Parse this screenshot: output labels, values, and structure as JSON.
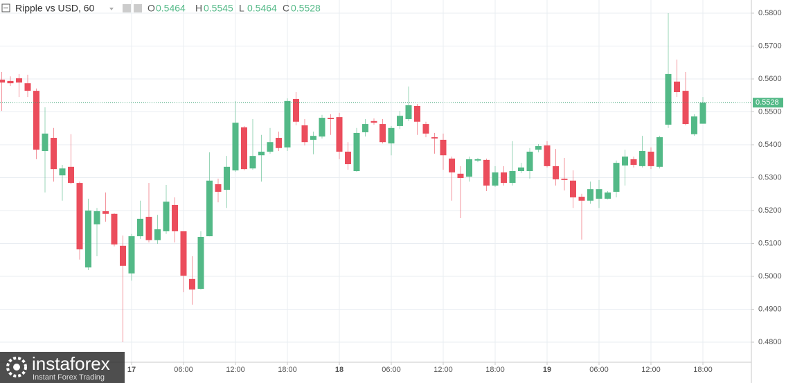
{
  "chart_data": {
    "type": "candlestick",
    "title": "Ripple vs USD, 60",
    "header_labels": [
      "O",
      "H",
      "L",
      "C"
    ],
    "categories": [
      null,
      null,
      null,
      null,
      null,
      null,
      null,
      null,
      null,
      null,
      null,
      null,
      null,
      null,
      null,
      "17",
      null,
      null,
      null,
      null,
      null,
      "06:00",
      null,
      null,
      null,
      null,
      null,
      "12:00",
      null,
      null,
      null,
      null,
      null,
      "18:00",
      null,
      null,
      null,
      null,
      null,
      "18",
      null,
      null,
      null,
      null,
      null,
      "06:00",
      null,
      null,
      null,
      null,
      null,
      "12:00",
      null,
      null,
      null,
      null,
      null,
      "18:00",
      null,
      null,
      null,
      null,
      null,
      "19",
      null,
      null,
      null,
      null,
      null,
      "06:00",
      null,
      null,
      null,
      null,
      null,
      "12:00",
      null,
      null,
      null,
      null,
      null,
      "18:00"
    ],
    "open": [
      0.5598,
      0.5594,
      0.5602,
      0.5587,
      0.5564,
      0.5381,
      0.5421,
      0.5307,
      0.5333,
      0.5284,
      0.5027,
      0.5158,
      0.5198,
      0.519,
      0.5093,
      0.5009,
      0.5122,
      0.5181,
      0.511,
      0.5137,
      0.5217,
      0.5137,
      0.4992,
      0.4962,
      0.5122,
      0.528,
      0.5263,
      0.5322,
      0.5453,
      0.5328,
      0.5368,
      0.5379,
      0.5421,
      0.5392,
      0.5539,
      0.5459,
      0.5415,
      0.5425,
      0.5482,
      0.5484,
      0.5379,
      0.532,
      0.5438,
      0.5472,
      0.5463,
      0.5404,
      0.5457,
      0.5478,
      0.5518,
      0.5463,
      0.5423,
      0.5415,
      0.5358,
      0.5312,
      0.5303,
      0.5352,
      0.5354,
      0.5276,
      0.5316,
      0.5284,
      0.532,
      0.532,
      0.5385,
      0.5398,
      0.5335,
      0.5297,
      0.5291,
      0.5242,
      0.523,
      0.5236,
      0.5236,
      0.5257,
      0.5337,
      0.5356,
      0.5335,
      0.5379,
      0.5333,
      0.5461,
      0.5592,
      0.5564,
      0.5432,
      0.5464
    ],
    "high": [
      0.5621,
      0.5608,
      0.5615,
      0.5613,
      0.5571,
      0.5514,
      0.5451,
      0.5339,
      0.5432,
      0.5288,
      0.5236,
      0.5208,
      0.5255,
      0.5192,
      0.5124,
      0.5129,
      0.523,
      0.5284,
      0.5187,
      0.5278,
      0.524,
      0.5137,
      0.5061,
      0.5137,
      0.5377,
      0.5297,
      0.5366,
      0.5533,
      0.5457,
      0.5478,
      0.543,
      0.5451,
      0.544,
      0.5541,
      0.556,
      0.5478,
      0.544,
      0.5491,
      0.5493,
      0.5497,
      0.5408,
      0.5451,
      0.5478,
      0.548,
      0.5478,
      0.5457,
      0.5503,
      0.5577,
      0.5524,
      0.547,
      0.5436,
      0.5434,
      0.5364,
      0.5335,
      0.5364,
      0.536,
      0.5358,
      0.5335,
      0.5335,
      0.5411,
      0.5345,
      0.539,
      0.5402,
      0.5411,
      0.5387,
      0.536,
      0.5322,
      0.5251,
      0.5288,
      0.5293,
      0.5259,
      0.5352,
      0.5385,
      0.5364,
      0.5427,
      0.5392,
      0.5427,
      0.58,
      0.5659,
      0.5621,
      0.5493,
      0.5545
    ],
    "low": [
      0.5503,
      0.5579,
      0.5545,
      0.5545,
      0.5356,
      0.5255,
      0.5288,
      0.523,
      0.528,
      0.5051,
      0.5019,
      0.5061,
      0.5166,
      0.5091,
      0.48,
      0.4987,
      0.5114,
      0.5103,
      0.5099,
      0.5129,
      0.5103,
      0.4952,
      0.4914,
      0.496,
      0.5122,
      0.5225,
      0.5208,
      0.5318,
      0.5322,
      0.5324,
      0.5288,
      0.5373,
      0.5381,
      0.5381,
      0.5459,
      0.5398,
      0.5371,
      0.5419,
      0.543,
      0.5356,
      0.5324,
      0.5318,
      0.5425,
      0.5461,
      0.5404,
      0.5368,
      0.5448,
      0.5472,
      0.543,
      0.5423,
      0.5373,
      0.5324,
      0.523,
      0.5177,
      0.5288,
      0.5347,
      0.5259,
      0.5272,
      0.5276,
      0.5276,
      0.5314,
      0.5297,
      0.5377,
      0.5331,
      0.5276,
      0.5261,
      0.5208,
      0.5112,
      0.5221,
      0.5208,
      0.5234,
      0.524,
      0.5276,
      0.5331,
      0.5331,
      0.5326,
      0.5328,
      0.5451,
      0.5545,
      0.5459,
      0.5427,
      0.5464
    ],
    "close": [
      0.5589,
      0.5587,
      0.5589,
      0.5564,
      0.5385,
      0.5434,
      0.5326,
      0.5328,
      0.5284,
      0.5082,
      0.52,
      0.5198,
      0.519,
      0.5097,
      0.5032,
      0.5122,
      0.5175,
      0.511,
      0.5143,
      0.5227,
      0.5137,
      0.5002,
      0.496,
      0.512,
      0.5291,
      0.5257,
      0.5333,
      0.5467,
      0.5326,
      0.5366,
      0.5379,
      0.5408,
      0.539,
      0.5533,
      0.547,
      0.5408,
      0.5427,
      0.5482,
      0.5478,
      0.5379,
      0.5341,
      0.5436,
      0.5463,
      0.5467,
      0.5408,
      0.5451,
      0.5488,
      0.552,
      0.547,
      0.5434,
      0.5419,
      0.5368,
      0.5316,
      0.5299,
      0.5356,
      0.5356,
      0.5276,
      0.5316,
      0.5284,
      0.532,
      0.5331,
      0.5379,
      0.5396,
      0.5335,
      0.5295,
      0.5293,
      0.524,
      0.523,
      0.5265,
      0.5265,
      0.5255,
      0.5345,
      0.5364,
      0.5339,
      0.5381,
      0.5335,
      0.5423,
      0.5615,
      0.556,
      0.5463,
      0.5486,
      0.5528
    ],
    "up_color": "#53b987",
    "down_color": "#eb4d5c",
    "ylim": [
      0.4739,
      0.584
    ],
    "yticks": [
      {
        "value": 0.48,
        "label": "0.4800"
      },
      {
        "value": 0.49,
        "label": "0.4900"
      },
      {
        "value": 0.5,
        "label": "0.5000"
      },
      {
        "value": 0.51,
        "label": "0.5100"
      },
      {
        "value": 0.52,
        "label": "0.5200"
      },
      {
        "value": 0.53,
        "label": "0.5300"
      },
      {
        "value": 0.54,
        "label": "0.5400"
      },
      {
        "value": 0.55,
        "label": "0.5500"
      },
      {
        "value": 0.56,
        "label": "0.5600"
      },
      {
        "value": 0.57,
        "label": "0.5700"
      },
      {
        "value": 0.58,
        "label": "0.5800"
      }
    ],
    "grid": true
  },
  "watermark": {
    "brand": "instaforex",
    "tagline": "Instant Forex Trading"
  }
}
